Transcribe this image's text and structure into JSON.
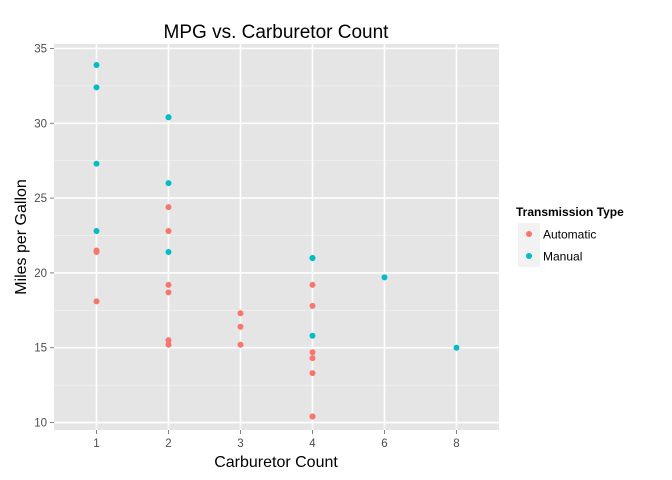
{
  "chart_data": {
    "type": "scatter",
    "title": "MPG vs. Carburetor Count",
    "xlabel": "Carburetor Count",
    "ylabel": "Miles per Gallon",
    "x_categories": [
      "1",
      "2",
      "3",
      "4",
      "6",
      "8"
    ],
    "y_ticks": [
      10,
      15,
      20,
      25,
      30,
      35
    ],
    "ylim": [
      9.5,
      35.3
    ],
    "grid": true,
    "legend": {
      "title": "Transmission Type",
      "placement": "right"
    },
    "series": [
      {
        "name": "Automatic",
        "color": "#F8766D",
        "points": [
          {
            "x": "1",
            "y": 21.4
          },
          {
            "x": "1",
            "y": 21.5
          },
          {
            "x": "1",
            "y": 18.1
          },
          {
            "x": "2",
            "y": 24.4
          },
          {
            "x": "2",
            "y": 22.8
          },
          {
            "x": "2",
            "y": 19.2
          },
          {
            "x": "2",
            "y": 18.7
          },
          {
            "x": "2",
            "y": 15.5
          },
          {
            "x": "2",
            "y": 15.2
          },
          {
            "x": "3",
            "y": 17.3
          },
          {
            "x": "3",
            "y": 16.4
          },
          {
            "x": "3",
            "y": 15.2
          },
          {
            "x": "4",
            "y": 19.2
          },
          {
            "x": "4",
            "y": 17.8
          },
          {
            "x": "4",
            "y": 14.7
          },
          {
            "x": "4",
            "y": 14.3
          },
          {
            "x": "4",
            "y": 13.3
          },
          {
            "x": "4",
            "y": 10.4
          },
          {
            "x": "4",
            "y": 10.4
          }
        ]
      },
      {
        "name": "Manual",
        "color": "#00BFC4",
        "points": [
          {
            "x": "1",
            "y": 33.9
          },
          {
            "x": "1",
            "y": 32.4
          },
          {
            "x": "1",
            "y": 27.3
          },
          {
            "x": "1",
            "y": 22.8
          },
          {
            "x": "2",
            "y": 30.4
          },
          {
            "x": "2",
            "y": 30.4
          },
          {
            "x": "2",
            "y": 26.0
          },
          {
            "x": "2",
            "y": 21.4
          },
          {
            "x": "4",
            "y": 21.0
          },
          {
            "x": "4",
            "y": 21.0
          },
          {
            "x": "4",
            "y": 15.8
          },
          {
            "x": "6",
            "y": 19.7
          },
          {
            "x": "8",
            "y": 15.0
          }
        ]
      }
    ]
  }
}
